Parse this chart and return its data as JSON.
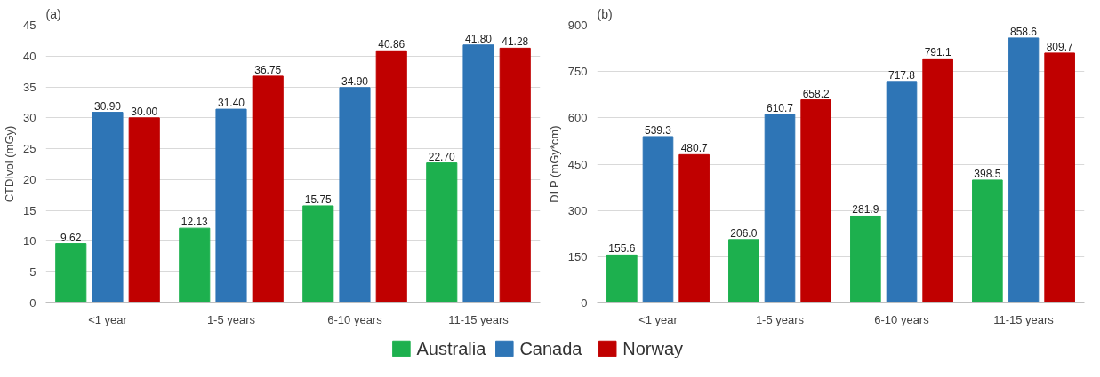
{
  "chart_data": [
    {
      "type": "bar",
      "title": "(a)",
      "ylabel": "CTDIvol (mGy)",
      "categories": [
        "<1 year",
        "1-5 years",
        "6-10 years",
        "11-15 years"
      ],
      "ylim": [
        0,
        45
      ],
      "yticks": [
        0,
        5,
        10,
        15,
        20,
        25,
        30,
        35,
        40,
        45
      ],
      "grid": "y",
      "legend": "bottom",
      "series": [
        {
          "name": "Australia",
          "color": "#1db04e",
          "values": [
            9.62,
            12.13,
            15.75,
            22.7
          ],
          "value_labels": [
            "9.62",
            "12.13",
            "15.75",
            "22.70"
          ]
        },
        {
          "name": "Canada",
          "color": "#2e75b6",
          "values": [
            30.9,
            31.4,
            34.9,
            41.8
          ],
          "value_labels": [
            "30.90",
            "31.40",
            "34.90",
            "41.80"
          ]
        },
        {
          "name": "Norway",
          "color": "#c00000",
          "values": [
            30.0,
            36.75,
            40.86,
            41.28
          ],
          "value_labels": [
            "30.00",
            "36.75",
            "40.86",
            "41.28"
          ]
        }
      ]
    },
    {
      "type": "bar",
      "title": "(b)",
      "ylabel": "DLP (mGy*cm)",
      "categories": [
        "<1 year",
        "1-5 years",
        "6-10 years",
        "11-15 years"
      ],
      "ylim": [
        0,
        900
      ],
      "yticks": [
        0,
        150,
        300,
        450,
        600,
        750,
        900
      ],
      "grid": "y",
      "series": [
        {
          "color": "#1db04e",
          "values": [
            155.6,
            206.0,
            281.9,
            398.5
          ],
          "value_labels": [
            "155.6",
            "206.0",
            "281.9",
            "398.5"
          ]
        },
        {
          "color": "#2e75b6",
          "values": [
            539.3,
            610.7,
            717.8,
            858.6
          ],
          "value_labels": [
            "539.3",
            "610.7",
            "717.8",
            "858.6"
          ]
        },
        {
          "color": "#c00000",
          "values": [
            480.7,
            658.2,
            791.1,
            809.7
          ],
          "value_labels": [
            "480.7",
            "658.2",
            "791.1",
            "809.7"
          ]
        }
      ]
    }
  ]
}
